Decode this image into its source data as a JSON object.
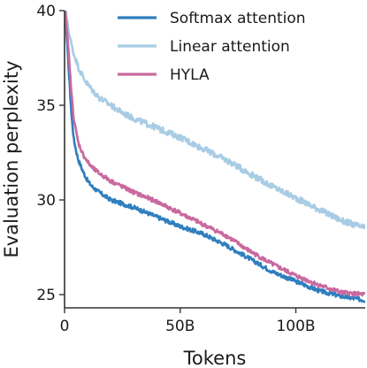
{
  "chart_data": {
    "type": "line",
    "xlabel": "Tokens",
    "ylabel": "Evaluation perplexity",
    "xlim": [
      0,
      130
    ],
    "ylim": [
      24.3,
      40
    ],
    "x_unit": "B tokens",
    "x_ticks": [
      {
        "value": 0,
        "label": "0"
      },
      {
        "value": 50,
        "label": "50B"
      },
      {
        "value": 100,
        "label": "100B"
      }
    ],
    "y_ticks": [
      {
        "value": 25,
        "label": "25"
      },
      {
        "value": 30,
        "label": "30"
      },
      {
        "value": 35,
        "label": "35"
      },
      {
        "value": 40,
        "label": "40"
      }
    ],
    "grid": false,
    "legend_position": "top-right",
    "series": [
      {
        "name": "Softmax attention",
        "color": "#2f7fbf",
        "x": [
          0,
          1,
          2,
          3,
          4,
          5,
          6,
          8,
          10,
          12,
          15,
          20,
          25,
          30,
          40,
          50,
          60,
          70,
          80,
          90,
          100,
          110,
          120,
          130
        ],
        "y": [
          40.5,
          38.5,
          36.5,
          34.5,
          33.2,
          32.6,
          32.1,
          31.5,
          31.0,
          30.7,
          30.4,
          30.0,
          29.8,
          29.6,
          29.1,
          28.6,
          28.2,
          27.6,
          26.9,
          26.2,
          25.7,
          25.2,
          24.9,
          24.7
        ]
      },
      {
        "name": "Linear attention",
        "color": "#a8cce4",
        "x": [
          0,
          1,
          2,
          3,
          4,
          5,
          6,
          8,
          10,
          12,
          15,
          20,
          25,
          30,
          40,
          50,
          60,
          70,
          80,
          90,
          100,
          110,
          120,
          130
        ],
        "y": [
          40.5,
          39.5,
          38.8,
          38.2,
          37.7,
          37.4,
          37.0,
          36.5,
          36.1,
          35.8,
          35.4,
          35.0,
          34.6,
          34.3,
          33.8,
          33.3,
          32.7,
          32.1,
          31.4,
          30.7,
          30.1,
          29.5,
          28.9,
          28.5
        ]
      },
      {
        "name": "HYLA",
        "color": "#c9699f",
        "x": [
          0,
          1,
          2,
          3,
          4,
          5,
          6,
          8,
          10,
          12,
          15,
          20,
          25,
          30,
          40,
          50,
          60,
          70,
          80,
          90,
          100,
          110,
          120,
          130
        ],
        "y": [
          40.5,
          39.0,
          37.4,
          35.6,
          34.3,
          33.6,
          33.0,
          32.4,
          32.0,
          31.7,
          31.4,
          31.0,
          30.7,
          30.4,
          29.9,
          29.3,
          28.7,
          28.1,
          27.3,
          26.6,
          26.0,
          25.5,
          25.1,
          25.0
        ]
      }
    ]
  }
}
